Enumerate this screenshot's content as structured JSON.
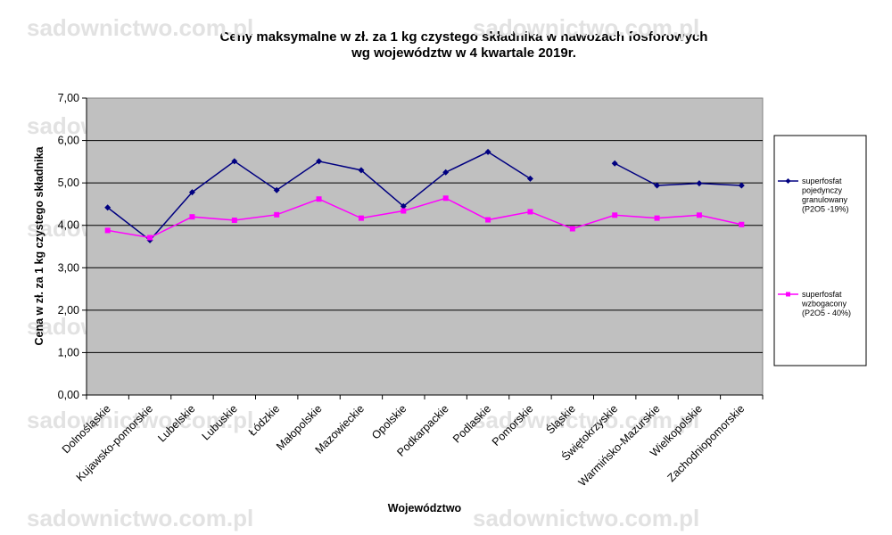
{
  "watermark": "sadownictwo.com.pl",
  "chart_data": {
    "type": "line",
    "title_lines": [
      "Ceny maksymalne  w zł. za 1 kg czystego składnika w nawozach fosforowych",
      "wg województw w 4 kwartale  2019r."
    ],
    "xlabel": "Województwo",
    "ylabel": "Cena w zł. za 1 kg czystego składnika",
    "ylim": [
      0,
      7
    ],
    "yticks": [
      "0,00",
      "1,00",
      "2,00",
      "3,00",
      "4,00",
      "5,00",
      "6,00",
      "7,00"
    ],
    "categories": [
      "Dolnośląskie",
      "Kujawsko-pomorskie",
      "Lubelskie",
      "Lubuskie",
      "Łódzkie",
      "Małopolskie",
      "Mazowieckie",
      "Opolskie",
      "Podkarpackie",
      "Podlaskie",
      "Pomorskie",
      "Śląskie",
      "Świętokrzyskie",
      "Warmińsko-Mazurskie",
      "Wielkopolskie",
      "Zachodniopomorskie"
    ],
    "grid": true,
    "legend_position": "right",
    "plot_background": "#c0c0c0",
    "series": [
      {
        "name_lines": [
          "superfosfat",
          "pojedynczy",
          "granulowany",
          "(P2O5 -19%)"
        ],
        "color": "#000080",
        "marker": "diamond",
        "values": [
          4.42,
          3.65,
          4.78,
          5.51,
          4.83,
          5.51,
          5.3,
          4.45,
          5.25,
          5.73,
          5.1,
          null,
          5.46,
          4.94,
          4.99,
          4.94
        ]
      },
      {
        "name_lines": [
          "superfosfat",
          "wzbogacony",
          "(P2O5 - 40%)"
        ],
        "color": "#ff00ff",
        "marker": "square",
        "values": [
          3.88,
          3.71,
          4.2,
          4.12,
          4.25,
          4.62,
          4.17,
          4.34,
          4.64,
          4.13,
          4.32,
          3.92,
          4.24,
          4.17,
          4.24,
          4.02
        ]
      }
    ]
  }
}
